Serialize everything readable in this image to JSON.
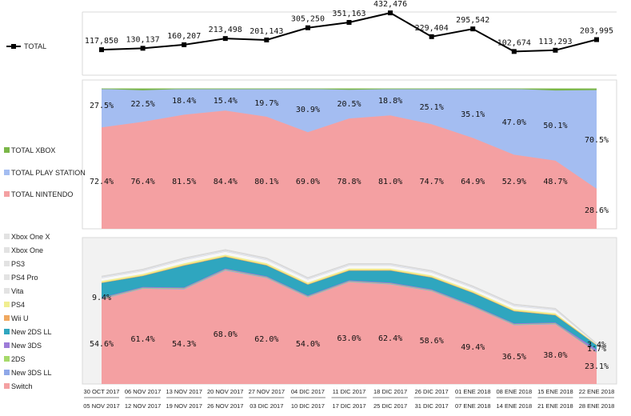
{
  "chart_data": [
    {
      "type": "line",
      "title": "",
      "legend": [
        "TOTAL"
      ],
      "categories": [
        "30 OCT 2017 - 05 NOV 2017",
        "06 NOV 2017 - 12 NOV 2017",
        "13 NOV 2017 - 19 NOV 2017",
        "20 NOV 2017 - 26 NOV 2017",
        "27 NOV 2017 - 03 DIC 2017",
        "04 DIC 2017 - 10 DIC 2017",
        "11 DIC 2017 - 17 DIC 2017",
        "18 DIC 2017 - 25 DIC 2017",
        "26 DIC 2017 - 31 DIC 2017",
        "01 ENE 2018 - 07 ENE 2018",
        "08 ENE 2018 - 14 ENE 2018",
        "15 ENE 2018 - 21 ENE 2018",
        "22 ENE 2018 - 28 ENE 2018"
      ],
      "values": [
        117850,
        130137,
        160207,
        213498,
        201143,
        305250,
        351163,
        432476,
        229404,
        295542,
        102674,
        113293,
        203995
      ],
      "labels": [
        "117,850",
        "130,137",
        "160,207",
        "213,498",
        "201,143",
        "305,250",
        "351,163",
        "432,476",
        "229,404",
        "295,542",
        "102,674",
        "113,293",
        "203,995"
      ],
      "ylim": [
        -100000,
        440000
      ]
    },
    {
      "type": "area",
      "stacked": "percent",
      "legend": [
        "TOTAL XBOX",
        "TOTAL PLAY STATION",
        "TOTAL NINTENDO"
      ],
      "series": [
        {
          "name": "TOTAL NINTENDO",
          "color": "#f4a0a2",
          "values": [
            72.4,
            76.4,
            81.5,
            84.4,
            80.1,
            69.0,
            78.8,
            81.0,
            74.7,
            64.9,
            52.9,
            48.7,
            28.6
          ],
          "labels": [
            "72.4%",
            "76.4%",
            "81.5%",
            "84.4%",
            "80.1%",
            "69.0%",
            "78.8%",
            "81.0%",
            "74.7%",
            "64.9%",
            "52.9%",
            "48.7%",
            "28.6%"
          ]
        },
        {
          "name": "TOTAL PLAY STATION",
          "color": "#a4bdf1",
          "values": [
            27.5,
            22.5,
            18.4,
            15.4,
            19.7,
            30.9,
            20.5,
            18.8,
            25.1,
            35.1,
            47.0,
            50.1,
            70.5
          ],
          "labels": [
            "27.5%",
            "22.5%",
            "18.4%",
            "15.4%",
            "19.7%",
            "30.9%",
            "20.5%",
            "18.8%",
            "25.1%",
            "35.1%",
            "47.0%",
            "50.1%",
            "70.5%"
          ]
        },
        {
          "name": "TOTAL XBOX",
          "color": "#7ab648",
          "values": [
            0.1,
            1.1,
            0.1,
            0.2,
            0.2,
            0.1,
            0.7,
            0.2,
            0.2,
            0.0,
            0.1,
            1.2,
            0.9
          ]
        }
      ]
    },
    {
      "type": "area",
      "stacked": "percent",
      "legend": [
        "Xbox One X",
        "Xbox One",
        "PS3",
        "PS4 Pro",
        "Vita",
        "PS4",
        "Wii U",
        "New 2DS LL",
        "New 3DS",
        "2DS",
        "New 3DS LL",
        "Switch"
      ],
      "series": [
        {
          "name": "Switch",
          "color": "#f4a0a2",
          "values": [
            54.6,
            61.4,
            54.3,
            68.0,
            62.0,
            54.0,
            63.0,
            62.4,
            58.6,
            49.4,
            36.5,
            38.0,
            23.1
          ],
          "labels": [
            "54.6%",
            "61.4%",
            "54.3%",
            "68.0%",
            "62.0%",
            "54.0%",
            "63.0%",
            "62.4%",
            "58.6%",
            "49.4%",
            "36.5%",
            "38.0%",
            "23.1%"
          ]
        },
        {
          "name": "New 3DS LL",
          "color": "#8fa8e8",
          "values": [
            0.4,
            0.3,
            0.3,
            0.4,
            0.3,
            0.3,
            0.3,
            0.3,
            0.3,
            0.3,
            0.3,
            0.3,
            0.2
          ]
        },
        {
          "name": "2DS",
          "color": "#a6d96a",
          "values": [
            0.3,
            0.3,
            0.3,
            0.3,
            0.3,
            0.3,
            0.3,
            0.3,
            0.3,
            0.3,
            0.3,
            0.3,
            0.2
          ]
        },
        {
          "name": "New 3DS",
          "color": "#9d7cd8",
          "values": [
            0.5,
            0.5,
            0.5,
            0.5,
            0.5,
            0.5,
            0.5,
            0.5,
            0.5,
            0.5,
            0.5,
            0.5,
            1.7
          ],
          "labels": [
            "",
            "",
            "",
            "",
            "",
            "",
            "",
            "",
            "",
            "",
            "",
            "",
            "1.7%"
          ]
        },
        {
          "name": "New 2DS LL",
          "color": "#2fa6bf",
          "values": [
            9.4,
            7.1,
            12.5,
            7.0,
            6.3,
            6.8,
            6.0,
            7.5,
            7.5,
            8.0,
            7.5,
            4.6,
            3.4
          ],
          "labels": [
            "9.4%",
            "",
            "",
            "",
            "",
            "",
            "",
            "",
            "",
            "",
            "",
            "",
            "3.4%"
          ]
        },
        {
          "name": "Wii U",
          "color": "#f0a860",
          "values": [
            0.3,
            0.3,
            0.3,
            0.3,
            0.3,
            0.3,
            0.3,
            0.3,
            0.3,
            0.3,
            0.3,
            0.3,
            0.1
          ]
        },
        {
          "name": "PS4",
          "color": "#f0ee90",
          "values": [
            1.0,
            1.0,
            1.0,
            1.0,
            1.0,
            1.0,
            1.0,
            1.0,
            1.0,
            1.0,
            1.0,
            1.0,
            0.3
          ]
        },
        {
          "name": "Vita",
          "color": "#f8f8f8",
          "values": [
            2.0,
            2.0,
            2.0,
            2.0,
            2.0,
            2.0,
            2.0,
            2.0,
            2.0,
            2.0,
            2.0,
            2.0,
            0.2
          ]
        },
        {
          "name": "PS4 Pro",
          "color": "#e6eaf6",
          "values": [
            0.5,
            0.5,
            0.5,
            0.5,
            0.5,
            0.5,
            0.5,
            0.5,
            0.5,
            0.5,
            0.5,
            0.5,
            0.2
          ]
        },
        {
          "name": "PS3",
          "color": "#f4f4f4",
          "values": [
            0.2,
            0.2,
            0.2,
            0.2,
            0.2,
            0.2,
            0.2,
            0.2,
            0.2,
            0.2,
            0.2,
            0.2,
            0.1
          ]
        },
        {
          "name": "Xbox One",
          "color": "#efefef",
          "values": [
            0.2,
            0.2,
            0.2,
            0.2,
            0.2,
            0.2,
            0.2,
            0.2,
            0.2,
            0.2,
            0.2,
            0.2,
            0.1
          ]
        },
        {
          "name": "Xbox One X",
          "color": "#f3f3f3",
          "values": [
            0.2,
            0.2,
            0.2,
            0.2,
            0.2,
            0.2,
            0.2,
            0.2,
            0.2,
            0.2,
            0.2,
            0.2,
            0.1
          ]
        }
      ]
    }
  ],
  "x_axis": {
    "top_labels": [
      "30 OCT 2017",
      "06 NOV 2017",
      "13 NOV 2017",
      "20 NOV 2017",
      "27 NOV 2017",
      "04 DIC 2017",
      "11 DIC 2017",
      "18 DIC 2017",
      "26 DIC 2017",
      "01 ENE 2018",
      "08 ENE 2018",
      "15 ENE 2018",
      "22 ENE 2018"
    ],
    "bottom_labels": [
      "05 NOV 2017",
      "12 NOV 2017",
      "19 NOV 2017",
      "26 NOV 2017",
      "03 DIC 2017",
      "10 DIC 2017",
      "17 DIC 2017",
      "25 DIC 2017",
      "31 DIC 2017",
      "07 ENE 2018",
      "14 ENE 2018",
      "21 ENE 2018",
      "28 ENE 2018"
    ]
  },
  "colors": {
    "line": "#000000",
    "grid": "#d9d9d9",
    "panel_bg": "#f2f2f2"
  }
}
